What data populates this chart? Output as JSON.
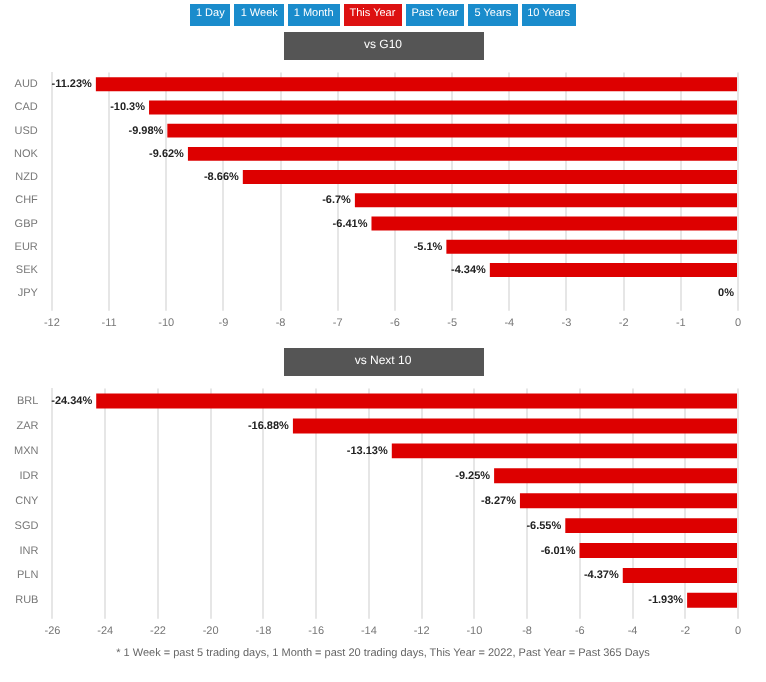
{
  "chart_data": [
    {
      "type": "bar",
      "orientation": "horizontal",
      "title": "vs G10",
      "annotations": [
        "1 Day",
        "1 Week",
        "1 Month",
        "This Year",
        "Past Year",
        "5 Years",
        "10 Years"
      ],
      "categories": [
        "AUD",
        "CAD",
        "USD",
        "NOK",
        "NZD",
        "CHF",
        "GBP",
        "EUR",
        "SEK",
        "JPY"
      ],
      "values": [
        -11.23,
        -10.3,
        -9.98,
        -9.62,
        -8.66,
        -6.7,
        -6.41,
        -5.1,
        -4.34,
        0
      ],
      "value_labels": [
        "-11.23%",
        "-10.3%",
        "-9.98%",
        "-9.62%",
        "-8.66%",
        "-6.7%",
        "-6.41%",
        "-5.1%",
        "-4.34%",
        "0%"
      ],
      "color": "#dd0000",
      "xlim": [
        -12,
        0
      ],
      "xticks": [
        -12,
        -11,
        -10,
        -9,
        -8,
        -7,
        -6,
        -5,
        -4,
        -3,
        -2,
        -1,
        0
      ],
      "grid": "x",
      "legend": false
    },
    {
      "type": "bar",
      "orientation": "horizontal",
      "title": "vs Next 10",
      "annotations": [
        "* 1 Week = past 5 trading days, 1 Month = past 20 trading days, This Year = 2022, Past Year = Past 365 Days"
      ],
      "categories": [
        "BRL",
        "ZAR",
        "MXN",
        "IDR",
        "CNY",
        "SGD",
        "INR",
        "PLN",
        "RUB"
      ],
      "values": [
        -24.34,
        -16.88,
        -13.13,
        -9.25,
        -8.27,
        -6.55,
        -6.01,
        -4.37,
        -1.93
      ],
      "value_labels": [
        "-24.34%",
        "-16.88%",
        "-13.13%",
        "-9.25%",
        "-8.27%",
        "-6.55%",
        "-6.01%",
        "-4.37%",
        "-1.93%"
      ],
      "color": "#dd0000",
      "xlim": [
        -26,
        0
      ],
      "xticks": [
        -26,
        -24,
        -22,
        -20,
        -18,
        -16,
        -14,
        -12,
        -10,
        -8,
        -6,
        -4,
        -2,
        0
      ],
      "grid": "x",
      "legend": false
    }
  ]
}
